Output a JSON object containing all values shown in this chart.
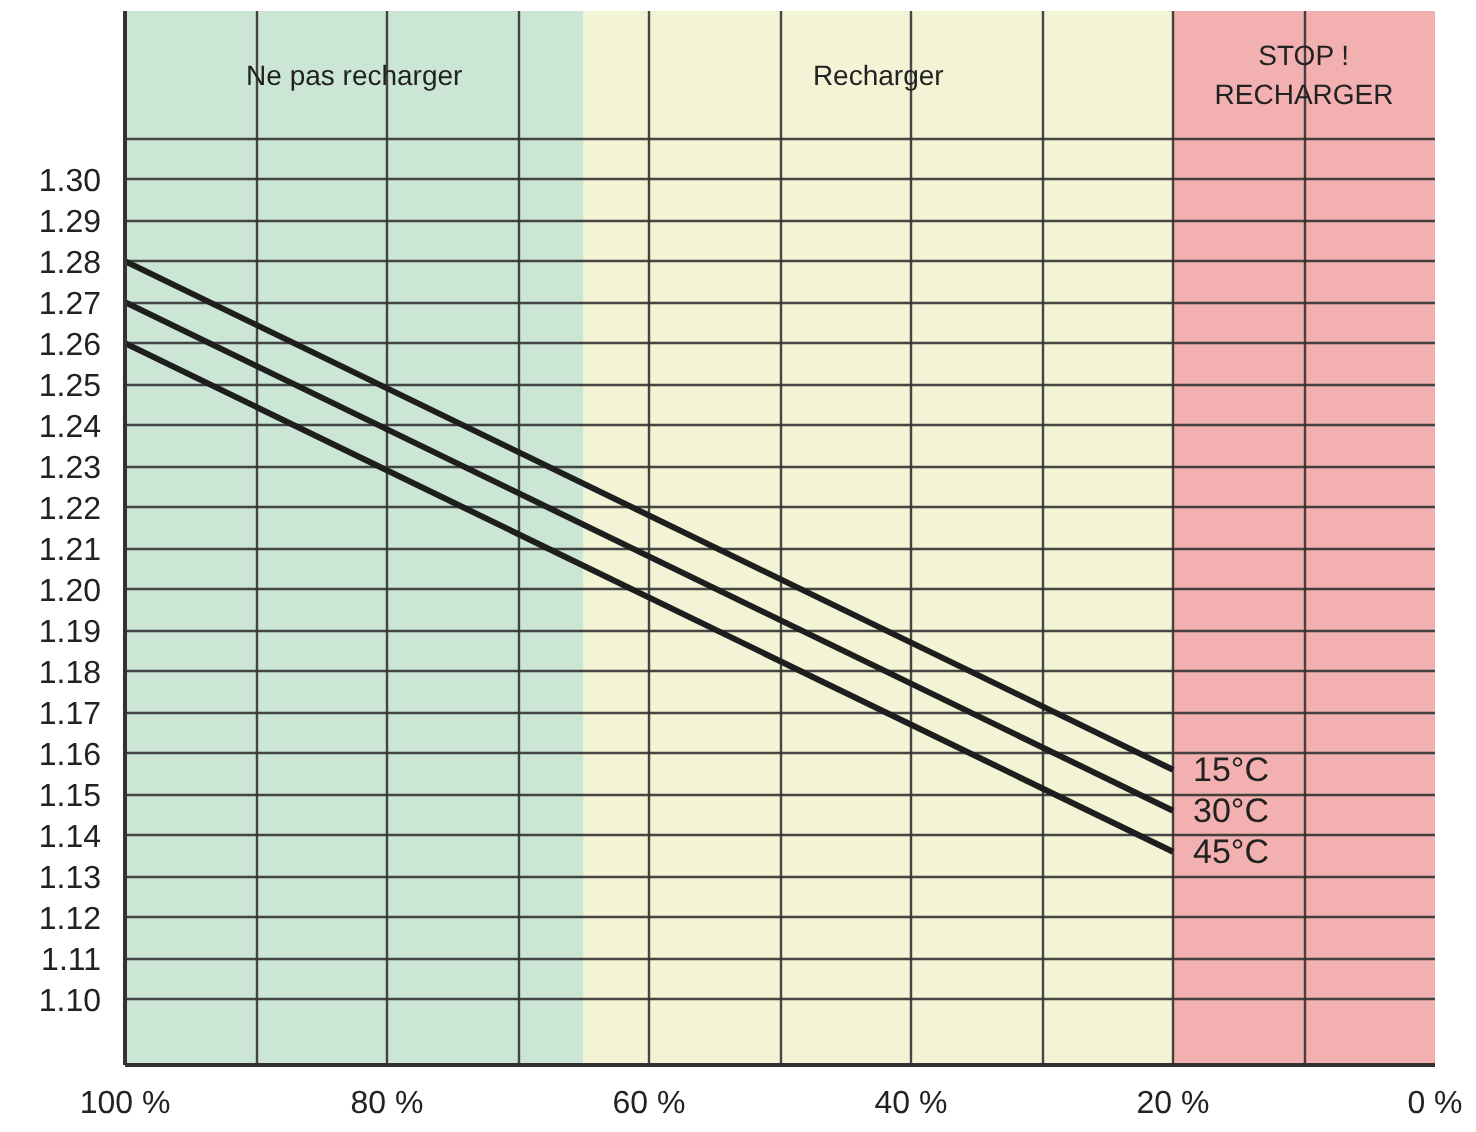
{
  "chart_data": {
    "type": "line",
    "x": [
      100,
      20
    ],
    "series": [
      {
        "name": "15°C",
        "color": "#1e1e1e",
        "values": [
          1.28,
          1.156
        ]
      },
      {
        "name": "30°C",
        "color": "#1e1e1e",
        "values": [
          1.27,
          1.146
        ]
      },
      {
        "name": "45°C",
        "color": "#1e1e1e",
        "values": [
          1.26,
          1.136
        ]
      }
    ],
    "xlim": [
      100,
      0
    ],
    "xticks": [
      {
        "value": 100,
        "label": "100 %"
      },
      {
        "value": 90,
        "label": null
      },
      {
        "value": 80,
        "label": "80 %"
      },
      {
        "value": 70,
        "label": null
      },
      {
        "value": 60,
        "label": "60 %"
      },
      {
        "value": 50,
        "label": null
      },
      {
        "value": 40,
        "label": "40 %"
      },
      {
        "value": 30,
        "label": null
      },
      {
        "value": 20,
        "label": "20 %"
      },
      {
        "value": 10,
        "label": null
      },
      {
        "value": 0,
        "label": "0 %"
      }
    ],
    "ylim": [
      1.084,
      1.341
    ],
    "yticks": [
      {
        "value": 1.1,
        "label": "1.10"
      },
      1.11,
      1.12,
      1.13,
      1.14,
      1.15,
      1.16,
      1.17,
      1.18,
      1.19,
      {
        "value": 1.2,
        "label": "1.20"
      },
      1.21,
      1.22,
      1.23,
      1.24,
      1.25,
      1.26,
      1.27,
      1.28,
      1.29,
      {
        "value": 1.3,
        "label": "1.30"
      },
      {
        "value": 1.31,
        "label": null
      }
    ],
    "bands": [
      {
        "axis": "x",
        "from": 100,
        "to": 65,
        "label": "Ne pas recharger",
        "color": "#cce6d6"
      },
      {
        "axis": "x",
        "from": 65,
        "to": 20,
        "label": "Recharger",
        "color": "#f3f3d6"
      },
      {
        "axis": "x",
        "from": 20,
        "to": 0,
        "label": "STOP !\nRECHARGER",
        "color": "#f2b0b0"
      }
    ],
    "grid": true,
    "marker": "none",
    "line_style": "solid"
  }
}
